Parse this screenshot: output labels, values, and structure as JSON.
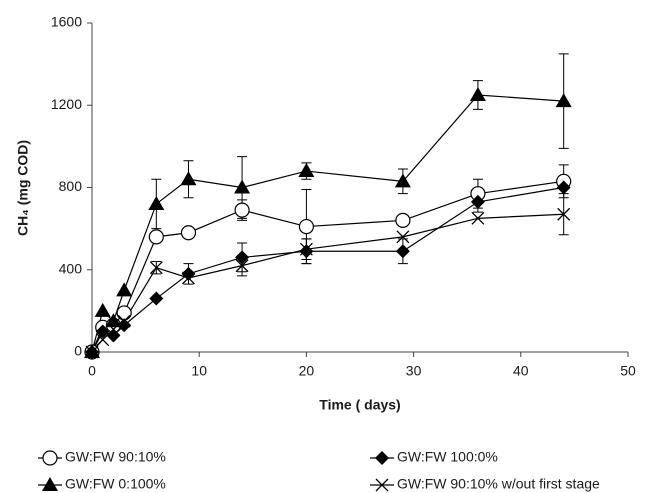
{
  "chart_data": {
    "type": "line",
    "x_label": "Time ( days)",
    "y_label": "CH₄ (mg COD)",
    "x": [
      0,
      1,
      2,
      3,
      6,
      9,
      14,
      20,
      29,
      36,
      44
    ],
    "series": [
      {
        "name": "GW:FW 90:10%",
        "color": "#000000",
        "marker": "circle-open",
        "values": [
          0,
          120,
          130,
          190,
          560,
          580,
          690,
          610,
          640,
          770,
          830
        ],
        "errors": [
          null,
          null,
          null,
          null,
          null,
          null,
          50,
          180,
          null,
          70,
          80
        ]
      },
      {
        "name": "GW:FW 100:0%",
        "color": "#000000",
        "marker": "diamond",
        "values": [
          0,
          100,
          80,
          130,
          260,
          380,
          460,
          490,
          490,
          730,
          800
        ],
        "errors": [
          null,
          null,
          null,
          null,
          null,
          50,
          70,
          60,
          60,
          50,
          null
        ]
      },
      {
        "name": "GW:FW 0:100%",
        "color": "#000000",
        "marker": "triangle",
        "values": [
          0,
          200,
          150,
          300,
          720,
          840,
          800,
          880,
          830,
          1250,
          1220
        ],
        "errors": [
          null,
          null,
          null,
          null,
          120,
          90,
          150,
          40,
          60,
          70,
          230
        ]
      },
      {
        "name": "GW:FW 90:10% w/out first stage",
        "color": "#000000",
        "marker": "x",
        "values": [
          0,
          60,
          110,
          150,
          410,
          360,
          420,
          500,
          560,
          650,
          670
        ],
        "errors": [
          null,
          null,
          null,
          null,
          30,
          null,
          50,
          50,
          null,
          null,
          100
        ]
      }
    ],
    "xlim": [
      0,
      50
    ],
    "xticks": [
      0,
      10,
      20,
      30,
      40,
      50
    ],
    "ylim": [
      0,
      1600
    ],
    "yticks": [
      0,
      400,
      800,
      1200,
      1600
    ],
    "grid": false,
    "legend": "bottom"
  }
}
